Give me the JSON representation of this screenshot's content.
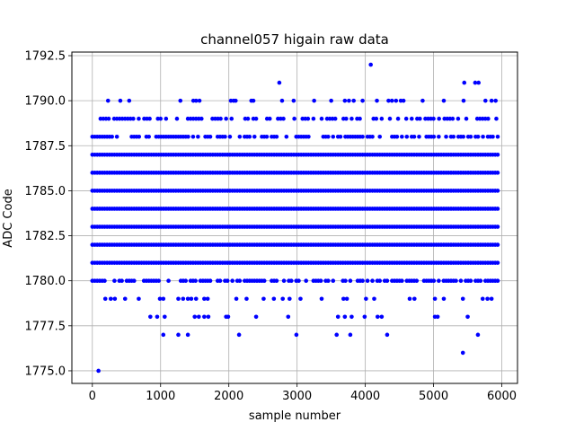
{
  "chart_data": {
    "type": "scatter",
    "title": "channel057 higain raw data",
    "xlabel": "sample number",
    "ylabel": "ADC Code",
    "xlim": [
      -300,
      6230
    ],
    "ylim": [
      1774.3,
      1792.7
    ],
    "xticks": [
      0,
      1000,
      2000,
      3000,
      4000,
      5000,
      6000
    ],
    "yticks": [
      1775.0,
      1777.5,
      1780.0,
      1782.5,
      1785.0,
      1787.5,
      1790.0,
      1792.5
    ],
    "xtick_labels": [
      "0",
      "1000",
      "2000",
      "3000",
      "4000",
      "5000",
      "6000"
    ],
    "ytick_labels": [
      "1775.0",
      "1777.5",
      "1780.0",
      "1782.5",
      "1785.0",
      "1787.5",
      "1790.0",
      "1792.5"
    ],
    "grid": true,
    "marker_color": "#0000ff",
    "series": [
      {
        "dense_levels": [
          1781,
          1782,
          1783,
          1784,
          1785,
          1786,
          1787
        ],
        "dense_x_range": [
          0,
          5940
        ],
        "semi_dense_levels": [
          1780,
          1788
        ],
        "points": [
          {
            "x": 90,
            "y": 1775
          },
          {
            "x": 5430,
            "y": 1776
          },
          {
            "x": 1040,
            "y": 1777
          },
          {
            "x": 1260,
            "y": 1777
          },
          {
            "x": 1400,
            "y": 1777
          },
          {
            "x": 2150,
            "y": 1777
          },
          {
            "x": 2990,
            "y": 1777
          },
          {
            "x": 3580,
            "y": 1777
          },
          {
            "x": 3780,
            "y": 1777
          },
          {
            "x": 4320,
            "y": 1777
          },
          {
            "x": 5650,
            "y": 1777
          },
          {
            "x": 850,
            "y": 1778
          },
          {
            "x": 950,
            "y": 1778
          },
          {
            "x": 1060,
            "y": 1778
          },
          {
            "x": 1500,
            "y": 1778
          },
          {
            "x": 1560,
            "y": 1778
          },
          {
            "x": 1640,
            "y": 1778
          },
          {
            "x": 1700,
            "y": 1778
          },
          {
            "x": 1960,
            "y": 1778
          },
          {
            "x": 1990,
            "y": 1778
          },
          {
            "x": 2400,
            "y": 1778
          },
          {
            "x": 2870,
            "y": 1778
          },
          {
            "x": 3600,
            "y": 1778
          },
          {
            "x": 3700,
            "y": 1778
          },
          {
            "x": 3800,
            "y": 1778
          },
          {
            "x": 3990,
            "y": 1778
          },
          {
            "x": 4180,
            "y": 1778
          },
          {
            "x": 4240,
            "y": 1778
          },
          {
            "x": 5020,
            "y": 1778
          },
          {
            "x": 5060,
            "y": 1778
          },
          {
            "x": 5500,
            "y": 1778
          },
          {
            "x": 190,
            "y": 1779
          },
          {
            "x": 270,
            "y": 1779
          },
          {
            "x": 330,
            "y": 1779
          },
          {
            "x": 480,
            "y": 1779
          },
          {
            "x": 680,
            "y": 1779
          },
          {
            "x": 990,
            "y": 1779
          },
          {
            "x": 1040,
            "y": 1779
          },
          {
            "x": 1260,
            "y": 1779
          },
          {
            "x": 1330,
            "y": 1779
          },
          {
            "x": 1400,
            "y": 1779
          },
          {
            "x": 1450,
            "y": 1779
          },
          {
            "x": 1520,
            "y": 1779
          },
          {
            "x": 1640,
            "y": 1779
          },
          {
            "x": 1690,
            "y": 1779
          },
          {
            "x": 2110,
            "y": 1779
          },
          {
            "x": 2260,
            "y": 1779
          },
          {
            "x": 2510,
            "y": 1779
          },
          {
            "x": 2660,
            "y": 1779
          },
          {
            "x": 2790,
            "y": 1779
          },
          {
            "x": 2890,
            "y": 1779
          },
          {
            "x": 3050,
            "y": 1779
          },
          {
            "x": 3360,
            "y": 1779
          },
          {
            "x": 3680,
            "y": 1779
          },
          {
            "x": 3730,
            "y": 1779
          },
          {
            "x": 4010,
            "y": 1779
          },
          {
            "x": 4130,
            "y": 1779
          },
          {
            "x": 4650,
            "y": 1779
          },
          {
            "x": 4720,
            "y": 1779
          },
          {
            "x": 5020,
            "y": 1779
          },
          {
            "x": 5150,
            "y": 1779
          },
          {
            "x": 5430,
            "y": 1779
          },
          {
            "x": 5720,
            "y": 1779
          },
          {
            "x": 5790,
            "y": 1779
          },
          {
            "x": 5850,
            "y": 1779
          },
          {
            "x": 230,
            "y": 1790
          },
          {
            "x": 410,
            "y": 1790
          },
          {
            "x": 540,
            "y": 1790
          },
          {
            "x": 1290,
            "y": 1790
          },
          {
            "x": 1480,
            "y": 1790
          },
          {
            "x": 1520,
            "y": 1790
          },
          {
            "x": 1570,
            "y": 1790
          },
          {
            "x": 2030,
            "y": 1790
          },
          {
            "x": 2070,
            "y": 1790
          },
          {
            "x": 2100,
            "y": 1790
          },
          {
            "x": 2330,
            "y": 1790
          },
          {
            "x": 2360,
            "y": 1790
          },
          {
            "x": 2780,
            "y": 1790
          },
          {
            "x": 2950,
            "y": 1790
          },
          {
            "x": 3250,
            "y": 1790
          },
          {
            "x": 3500,
            "y": 1790
          },
          {
            "x": 3700,
            "y": 1790
          },
          {
            "x": 3760,
            "y": 1790
          },
          {
            "x": 3830,
            "y": 1790
          },
          {
            "x": 3960,
            "y": 1790
          },
          {
            "x": 4170,
            "y": 1790
          },
          {
            "x": 4340,
            "y": 1790
          },
          {
            "x": 4390,
            "y": 1790
          },
          {
            "x": 4450,
            "y": 1790
          },
          {
            "x": 4520,
            "y": 1790
          },
          {
            "x": 4560,
            "y": 1790
          },
          {
            "x": 4840,
            "y": 1790
          },
          {
            "x": 5150,
            "y": 1790
          },
          {
            "x": 5440,
            "y": 1790
          },
          {
            "x": 5760,
            "y": 1790
          },
          {
            "x": 5850,
            "y": 1790
          },
          {
            "x": 5910,
            "y": 1790
          },
          {
            "x": 2740,
            "y": 1791
          },
          {
            "x": 5450,
            "y": 1791
          },
          {
            "x": 5610,
            "y": 1791
          },
          {
            "x": 5660,
            "y": 1791
          },
          {
            "x": 4080,
            "y": 1792
          }
        ]
      }
    ]
  }
}
